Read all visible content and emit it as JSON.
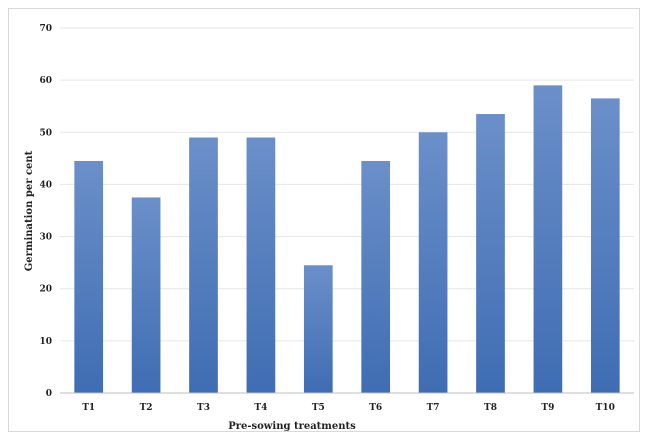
{
  "chart_data": {
    "type": "bar",
    "title": "",
    "xlabel": "Pre-sowing treatments",
    "ylabel": "Germination per cent",
    "categories": [
      "T1",
      "T2",
      "T3",
      "T4",
      "T5",
      "T6",
      "T7",
      "T8",
      "T9",
      "T10"
    ],
    "values": [
      44.5,
      37.5,
      49,
      49,
      24.5,
      44.5,
      50,
      53.5,
      59,
      56.5
    ],
    "ylim": [
      0,
      70
    ],
    "yticks": [
      "0",
      "10",
      "20",
      "30",
      "40",
      "50",
      "60",
      "70"
    ],
    "grid": true,
    "legend": "none",
    "colors": {
      "bar_top": "#6b8fc9",
      "bar_bottom": "#3f6db3"
    }
  }
}
